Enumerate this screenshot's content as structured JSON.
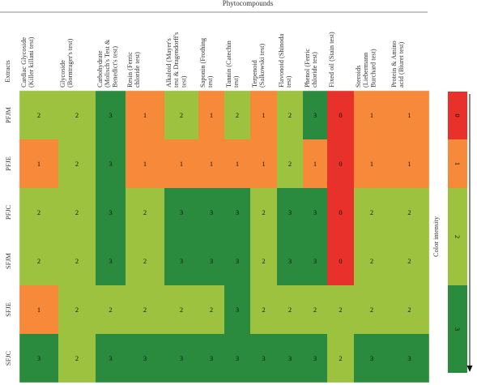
{
  "chart_data": {
    "type": "heatmap",
    "title": "Phytocompounds",
    "row_axis_label": "Extracts",
    "rows": [
      "PFJM",
      "PFJE",
      "PFJC",
      "SFJM",
      "SFJE",
      "SFJC"
    ],
    "columns": [
      [
        "Cardiac Glycoside",
        "(Killer killani test)"
      ],
      [
        "Glycoside",
        "(Borntrager's test)"
      ],
      [
        "Carbohydrate",
        "(Molisch's Test &",
        "Benedict's test)"
      ],
      [
        "Resin (Ferric",
        "chloride test)"
      ],
      [
        "Alkaloid (Mayer's",
        "test & Dragendorff's",
        "test)"
      ],
      [
        "Saponin (Frothing",
        "test)"
      ],
      [
        "Tannin (Catechin",
        "test)"
      ],
      [
        "Terpenoid",
        "(Salkowski test)"
      ],
      [
        "Flavonoid (Shinoda",
        "test)"
      ],
      [
        "Phenol (Ferric",
        "chloride test)"
      ],
      [
        "Fixed oil (Stain test)"
      ],
      [
        "Steroids",
        "(Liebermann",
        "Burchard test)"
      ],
      [
        "Protein & Amino",
        "acid (Biuret test)"
      ]
    ],
    "values": [
      [
        2,
        2,
        3,
        1,
        2,
        1,
        2,
        1,
        2,
        3,
        0,
        1,
        1
      ],
      [
        1,
        2,
        3,
        1,
        1,
        1,
        1,
        1,
        2,
        1,
        0,
        1,
        1
      ],
      [
        2,
        2,
        3,
        2,
        3,
        3,
        3,
        2,
        3,
        3,
        0,
        2,
        2
      ],
      [
        2,
        2,
        3,
        2,
        3,
        3,
        3,
        2,
        3,
        3,
        0,
        2,
        2
      ],
      [
        1,
        2,
        2,
        2,
        2,
        2,
        3,
        2,
        2,
        2,
        2,
        2,
        2
      ],
      [
        3,
        2,
        3,
        3,
        3,
        3,
        3,
        3,
        3,
        3,
        2,
        3,
        3
      ]
    ],
    "color_scale": {
      "0": "#e8312a",
      "1": "#f7893a",
      "2": "#9dc23f",
      "3": "#2a8a3e"
    },
    "colorbar": {
      "label": "Color intensity",
      "levels": [
        "0",
        "1",
        "2",
        "3"
      ]
    }
  }
}
